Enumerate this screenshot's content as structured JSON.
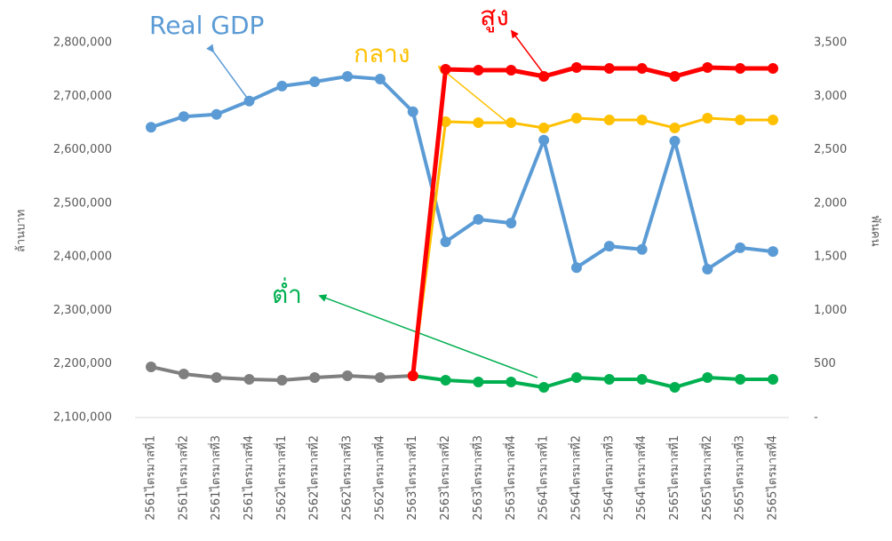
{
  "chart_data": {
    "type": "line",
    "categories": [
      "2561ไตรมาสที่1",
      "2561ไตรมาสที่2",
      "2561ไตรมาสที่3",
      "2561ไตรมาสที่4",
      "2562ไตรมาสที่1",
      "2562ไตรมาสที่2",
      "2562ไตรมาสที่3",
      "2562ไตรมาสที่4",
      "2563ไตรมาสที่1",
      "2563ไตรมาสที่2",
      "2563ไตรมาสที่3",
      "2563ไตรมาสที่4",
      "2564ไตรมาสที่1",
      "2564ไตรมาสที่2",
      "2564ไตรมาสที่3",
      "2564ไตรมาสที่4",
      "2565ไตรมาสที่1",
      "2565ไตรมาสที่2",
      "2565ไตรมาสที่3",
      "2565ไตรมาสที่4"
    ],
    "ylabel": "ล้านบาท",
    "y2label": "พันคน",
    "ylim": [
      2100000,
      2800000
    ],
    "yticks": [
      {
        "value": 2100000,
        "label": "2,100,000"
      },
      {
        "value": 2200000,
        "label": "2,200,000"
      },
      {
        "value": 2300000,
        "label": "2,300,000"
      },
      {
        "value": 2400000,
        "label": "2,400,000"
      },
      {
        "value": 2500000,
        "label": "2,500,000"
      },
      {
        "value": 2600000,
        "label": "2,600,000"
      },
      {
        "value": 2700000,
        "label": "2,700,000"
      },
      {
        "value": 2800000,
        "label": "2,800,000"
      }
    ],
    "y2lim": [
      0,
      3500
    ],
    "y2ticks": [
      {
        "value": 0,
        "label": "-"
      },
      500,
      {
        "value": 1000,
        "label": "1,000"
      },
      {
        "value": 1500,
        "label": "1,500"
      },
      {
        "value": 2000,
        "label": "2,000"
      },
      {
        "value": 2500,
        "label": "2,500"
      },
      {
        "value": 3000,
        "label": "3,000"
      },
      {
        "value": 3500,
        "label": "3,500"
      }
    ],
    "series": [
      {
        "name": "Real GDP",
        "color": "#5b9bd5",
        "values": [
          2642000,
          2662000,
          2666000,
          2691000,
          2719000,
          2727000,
          2737000,
          2732000,
          2671000,
          2428000,
          2470000,
          2463000,
          2618000,
          2380000,
          2420000,
          2414000,
          2616000,
          2377000,
          2417000,
          2410000
        ]
      },
      {
        "color": "#7f7f7f",
        "axis": "y2",
        "values": [
          473,
          406,
          373,
          357,
          348,
          373,
          390,
          373,
          390,
          null,
          null,
          null,
          null,
          null,
          null,
          null,
          null,
          null,
          null,
          null
        ]
      },
      {
        "name": "ต่ำ",
        "color": "#00b050",
        "axis": "y2",
        "values": [
          null,
          null,
          null,
          null,
          null,
          null,
          null,
          null,
          390,
          348,
          332,
          332,
          282,
          373,
          357,
          357,
          282,
          373,
          357,
          357
        ]
      },
      {
        "name": "กลาง",
        "color": "#ffc000",
        "axis": "y2",
        "values": [
          null,
          null,
          null,
          null,
          null,
          null,
          null,
          null,
          390,
          2762,
          2753,
          2753,
          2704,
          2795,
          2778,
          2778,
          2704,
          2795,
          2778,
          2778
        ]
      },
      {
        "name": "สูง",
        "color": "#ff0000",
        "axis": "y2",
        "values": [
          null,
          null,
          null,
          null,
          null,
          null,
          null,
          null,
          390,
          3251,
          3243,
          3243,
          3185,
          3268,
          3259,
          3259,
          3185,
          3268,
          3259,
          3259
        ]
      }
    ]
  }
}
